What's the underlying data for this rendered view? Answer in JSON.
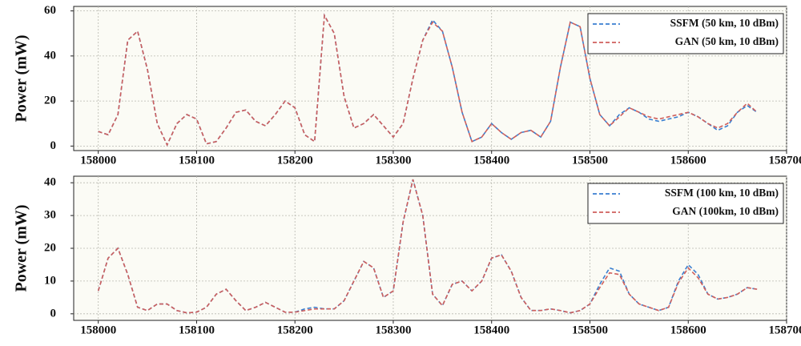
{
  "chart_data": [
    {
      "type": "line",
      "ylabel": "Power (mW)",
      "x": [
        158000,
        158010,
        158020,
        158030,
        158040,
        158050,
        158060,
        158070,
        158080,
        158090,
        158100,
        158110,
        158120,
        158130,
        158140,
        158150,
        158160,
        158170,
        158180,
        158190,
        158200,
        158210,
        158220,
        158230,
        158240,
        158250,
        158260,
        158270,
        158280,
        158290,
        158300,
        158310,
        158320,
        158330,
        158340,
        158350,
        158360,
        158370,
        158380,
        158390,
        158400,
        158410,
        158420,
        158430,
        158440,
        158450,
        158460,
        158470,
        158480,
        158490,
        158500,
        158510,
        158520,
        158530,
        158540,
        158550,
        158560,
        158570,
        158580,
        158590,
        158600,
        158610,
        158620,
        158630,
        158640,
        158650,
        158660,
        158670
      ],
      "series": [
        {
          "name": "SSFM (50 km, 10 dBm)",
          "color": "#3a7fd0",
          "values": [
            6.5,
            5,
            14,
            47,
            51,
            34,
            10,
            0.5,
            10,
            14,
            12,
            1,
            2,
            8,
            15,
            16,
            11,
            9,
            14,
            20,
            17,
            5,
            2,
            58,
            50,
            22,
            8,
            10,
            14,
            9,
            4,
            10,
            30,
            47,
            56,
            51,
            35,
            15,
            2,
            4,
            10,
            6,
            3,
            6,
            7,
            4,
            11,
            35,
            55,
            53,
            30,
            14,
            9,
            14,
            17,
            15,
            12,
            11,
            12,
            13,
            15,
            13,
            10,
            7,
            9,
            15,
            18,
            15
          ]
        },
        {
          "name": "GAN (50 km, 10 dBm)",
          "color": "#cf5f5c",
          "values": [
            6.5,
            5,
            14,
            47,
            51,
            34,
            10,
            0.5,
            10,
            14,
            12,
            1,
            2,
            8,
            15,
            16,
            11,
            9,
            14,
            20,
            17,
            5,
            2,
            58,
            50,
            22,
            8,
            10,
            14,
            9,
            4,
            10,
            30,
            47,
            55,
            51,
            35,
            15,
            2,
            4,
            10,
            6,
            3,
            6,
            7,
            4,
            11,
            35,
            55,
            53,
            30,
            14,
            9,
            13,
            17,
            15,
            13,
            12,
            13,
            14,
            15,
            13,
            10,
            8,
            10,
            15,
            19,
            15
          ]
        }
      ],
      "xlim": [
        157975,
        158700
      ],
      "ylim": [
        -2,
        62
      ],
      "xticks": [
        158000,
        158100,
        158200,
        158300,
        158400,
        158500,
        158600,
        158700
      ],
      "yticks": [
        0,
        20,
        40,
        60
      ],
      "grid": true,
      "legend": "upper right"
    },
    {
      "type": "line",
      "ylabel": "Power (mW)",
      "x": [
        158000,
        158010,
        158020,
        158030,
        158040,
        158050,
        158060,
        158070,
        158080,
        158090,
        158100,
        158110,
        158120,
        158130,
        158140,
        158150,
        158160,
        158170,
        158180,
        158190,
        158200,
        158210,
        158220,
        158230,
        158240,
        158250,
        158260,
        158270,
        158280,
        158290,
        158300,
        158310,
        158320,
        158330,
        158340,
        158350,
        158360,
        158370,
        158380,
        158390,
        158400,
        158410,
        158420,
        158430,
        158440,
        158450,
        158460,
        158470,
        158480,
        158490,
        158500,
        158510,
        158520,
        158530,
        158540,
        158550,
        158560,
        158570,
        158580,
        158590,
        158600,
        158610,
        158620,
        158630,
        158640,
        158650,
        158660,
        158670
      ],
      "series": [
        {
          "name": "SSFM (100 km, 10 dBm)",
          "color": "#3a7fd0",
          "values": [
            7,
            17,
            20,
            12,
            2,
            1,
            3,
            3,
            1,
            0.3,
            0.5,
            2,
            6,
            7.5,
            4,
            1,
            2,
            3.5,
            2,
            0.5,
            0.5,
            1.5,
            2,
            1.5,
            1.5,
            4,
            10,
            16,
            14,
            5,
            7,
            28,
            41,
            30,
            6,
            2.5,
            9,
            10,
            7,
            10,
            17,
            18,
            13,
            5,
            1,
            1,
            1.5,
            1,
            0.3,
            1,
            3,
            9,
            14,
            13,
            6,
            3,
            2,
            1,
            2,
            10,
            15,
            12,
            6,
            4.5,
            5,
            6,
            8,
            7.5
          ]
        },
        {
          "name": "GAN (100km, 10 dBm)",
          "color": "#cf5f5c",
          "values": [
            7,
            17,
            20,
            12,
            2,
            1,
            3,
            3,
            1,
            0.3,
            0.5,
            2,
            6,
            7.5,
            4,
            1,
            2,
            3.5,
            2,
            0.5,
            0.5,
            1,
            1.5,
            1.5,
            1.5,
            4,
            10,
            16,
            14,
            5,
            7,
            28,
            41,
            30,
            6,
            2.5,
            9,
            10,
            7,
            10,
            17,
            18,
            13,
            5,
            1,
            1,
            1.5,
            1,
            0.3,
            1,
            3,
            8,
            12.5,
            12,
            6,
            3,
            2,
            1,
            2,
            9.5,
            14,
            11,
            6,
            4.5,
            5,
            6,
            8,
            7.5
          ]
        }
      ],
      "xlim": [
        157975,
        158700
      ],
      "ylim": [
        -2,
        42
      ],
      "xticks": [
        158000,
        158100,
        158200,
        158300,
        158400,
        158500,
        158600,
        158700
      ],
      "yticks": [
        0,
        10,
        20,
        30,
        40
      ],
      "grid": true,
      "legend": "upper right"
    }
  ]
}
